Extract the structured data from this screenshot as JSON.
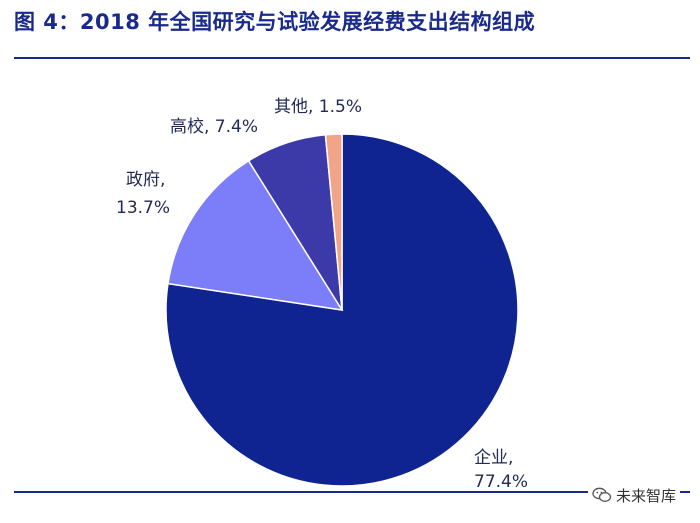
{
  "title": "图 4：2018 年全国研究与试验发展经费支出结构组成",
  "watermark": {
    "text": "未来智库",
    "icon": "wechat-icon"
  },
  "chart_data": {
    "type": "pie",
    "title": "",
    "slices": [
      {
        "name": "企业",
        "value": 77.4,
        "pct": "77.4%",
        "color": "#0f2490"
      },
      {
        "name": "政府",
        "value": 13.7,
        "pct": "13.7%",
        "color": "#7b7df9"
      },
      {
        "name": "高校",
        "value": 7.4,
        "pct": "7.4%",
        "color": "#3c3aa9"
      },
      {
        "name": "其他",
        "value": 1.5,
        "pct": "1.5%",
        "color": "#f2a488"
      }
    ]
  }
}
